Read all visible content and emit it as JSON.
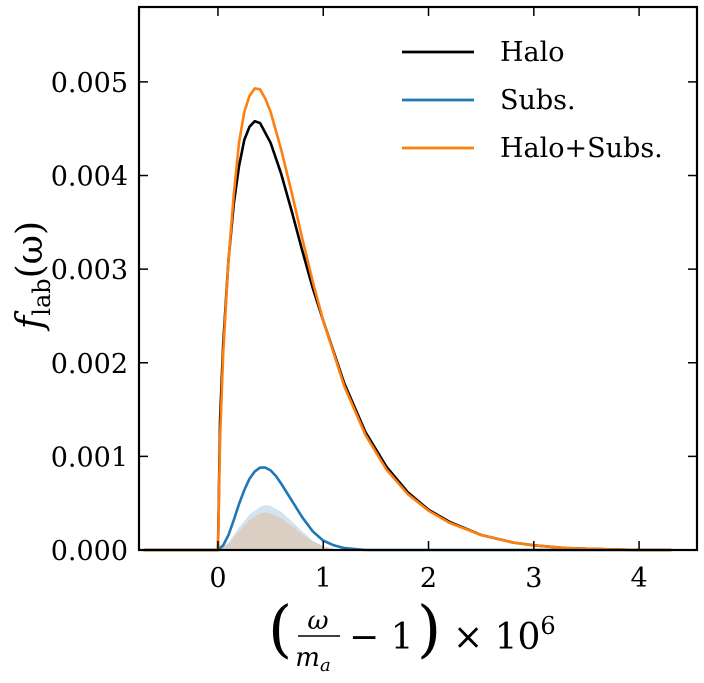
{
  "chart_data": {
    "type": "line",
    "xlim": [
      -0.75,
      4.55
    ],
    "ylim": [
      0,
      0.0058
    ],
    "xticks": [
      0,
      1,
      2,
      3,
      4
    ],
    "yticks": [
      0.0,
      0.001,
      0.002,
      0.003,
      0.004,
      0.005
    ],
    "xtick_labels": [
      "0",
      "1",
      "2",
      "3",
      "4"
    ],
    "ytick_labels": [
      "0.000",
      "0.001",
      "0.002",
      "0.003",
      "0.004",
      "0.005"
    ],
    "ylabel": {
      "main": "f",
      "sub": "lab",
      "arg": "(ω)"
    },
    "xlabel": {
      "num": "ω",
      "den": "m",
      "den_sub": "a",
      "rest": "− 1",
      "times": "× 10",
      "exp": "6"
    },
    "legend_position": "upper-right",
    "series": [
      {
        "name": "Halo",
        "color": "#000000",
        "x": [
          -0.7,
          0.0,
          0.02,
          0.05,
          0.1,
          0.15,
          0.2,
          0.25,
          0.3,
          0.35,
          0.4,
          0.5,
          0.6,
          0.7,
          0.8,
          0.9,
          1.0,
          1.2,
          1.4,
          1.6,
          1.8,
          2.0,
          2.2,
          2.5,
          2.8,
          3.0,
          3.3,
          3.6,
          4.0,
          4.3
        ],
        "y": [
          0.0,
          0.0,
          0.0014,
          0.0022,
          0.0031,
          0.0037,
          0.0041,
          0.00438,
          0.00452,
          0.00458,
          0.00456,
          0.00435,
          0.00402,
          0.00362,
          0.0032,
          0.0028,
          0.00245,
          0.00178,
          0.00126,
          0.00089,
          0.00062,
          0.00043,
          0.0003,
          0.00016,
          8e-05,
          5e-05,
          2e-05,
          1e-05,
          0.0,
          0.0
        ]
      },
      {
        "name": "Subs.",
        "color": "#1f77b4",
        "x": [
          -0.7,
          0.0,
          0.05,
          0.1,
          0.15,
          0.2,
          0.25,
          0.3,
          0.35,
          0.4,
          0.45,
          0.5,
          0.55,
          0.6,
          0.65,
          0.7,
          0.8,
          0.9,
          1.0,
          1.1,
          1.2,
          1.4,
          4.3
        ],
        "y": [
          0.0,
          0.0,
          5e-05,
          0.00016,
          0.00032,
          0.00049,
          0.00064,
          0.00076,
          0.00084,
          0.00088,
          0.00088,
          0.00085,
          0.00079,
          0.00071,
          0.00062,
          0.00053,
          0.00035,
          0.0002,
          0.0001,
          5e-05,
          2e-05,
          0.0,
          0.0
        ]
      },
      {
        "name": "Halo+Subs.",
        "color": "#ff7f0e",
        "x": [
          -0.7,
          0.0,
          0.02,
          0.05,
          0.1,
          0.15,
          0.2,
          0.25,
          0.3,
          0.35,
          0.4,
          0.45,
          0.5,
          0.6,
          0.7,
          0.8,
          0.9,
          1.0,
          1.2,
          1.4,
          1.6,
          1.8,
          2.0,
          2.2,
          2.5,
          2.8,
          3.0,
          3.3,
          3.6,
          4.0,
          4.3
        ],
        "y": [
          0.0,
          0.0,
          0.0012,
          0.0021,
          0.0031,
          0.0038,
          0.00435,
          0.00468,
          0.00485,
          0.00493,
          0.00492,
          0.00482,
          0.00468,
          0.00428,
          0.00382,
          0.00333,
          0.00287,
          0.00245,
          0.00175,
          0.00123,
          0.00086,
          0.0006,
          0.00042,
          0.00029,
          0.00016,
          8e-05,
          5e-05,
          2e-05,
          1e-05,
          0.0,
          0.0
        ]
      }
    ],
    "shaded_areas": [
      {
        "color": "#1f77b4",
        "opacity": 0.2,
        "x": [
          0.0,
          0.1,
          0.2,
          0.3,
          0.4,
          0.45,
          0.5,
          0.6,
          0.7,
          0.8,
          0.9,
          1.0,
          1.1,
          1.2
        ],
        "y": [
          0.0,
          8e-05,
          0.00024,
          0.00038,
          0.00046,
          0.00048,
          0.00047,
          0.00041,
          0.00031,
          0.0002,
          0.0001,
          4e-05,
          1e-05,
          0.0
        ]
      },
      {
        "color": "#ff7f0e",
        "opacity": 0.2,
        "x": [
          0.0,
          0.1,
          0.2,
          0.3,
          0.4,
          0.45,
          0.5,
          0.6,
          0.7,
          0.8,
          0.9,
          1.0,
          1.1,
          1.2
        ],
        "y": [
          0.0,
          6e-05,
          0.0002,
          0.00032,
          0.00039,
          0.0004,
          0.00039,
          0.00034,
          0.00026,
          0.00017,
          9e-05,
          4e-05,
          1e-05,
          0.0
        ]
      }
    ]
  }
}
